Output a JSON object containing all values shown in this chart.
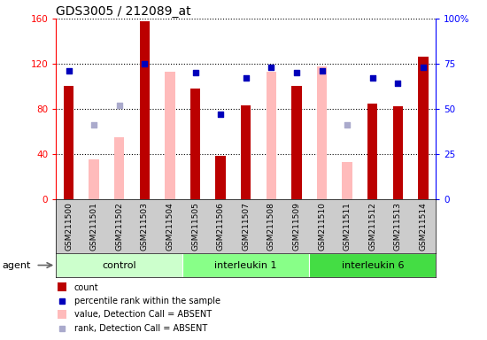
{
  "title": "GDS3005 / 212089_at",
  "samples": [
    "GSM211500",
    "GSM211501",
    "GSM211502",
    "GSM211503",
    "GSM211504",
    "GSM211505",
    "GSM211506",
    "GSM211507",
    "GSM211508",
    "GSM211509",
    "GSM211510",
    "GSM211511",
    "GSM211512",
    "GSM211513",
    "GSM211514"
  ],
  "groups": [
    {
      "label": "control",
      "start": 0,
      "end": 4
    },
    {
      "label": "interleukin 1",
      "start": 5,
      "end": 9
    },
    {
      "label": "interleukin 6",
      "start": 10,
      "end": 14
    }
  ],
  "group_colors": [
    "#ccffcc",
    "#88ff88",
    "#44dd44"
  ],
  "agent_label": "agent",
  "red_bars": [
    100,
    null,
    null,
    158,
    null,
    98,
    38,
    83,
    null,
    100,
    null,
    null,
    85,
    82,
    126
  ],
  "pink_bars": [
    null,
    35,
    55,
    null,
    113,
    null,
    null,
    null,
    113,
    null,
    118,
    33,
    null,
    null,
    null
  ],
  "blue_squares_pct": [
    71,
    null,
    null,
    75,
    null,
    70,
    47,
    67,
    73,
    70,
    71,
    null,
    67,
    64,
    73
  ],
  "lavender_squares_pct": [
    null,
    41,
    52,
    null,
    null,
    null,
    null,
    null,
    null,
    null,
    null,
    41,
    null,
    null,
    null
  ],
  "ylim_left": [
    0,
    160
  ],
  "ylim_right": [
    0,
    100
  ],
  "yticks_left": [
    0,
    40,
    80,
    120,
    160
  ],
  "yticks_right": [
    0,
    25,
    50,
    75,
    100
  ],
  "yticklabels_right": [
    "0",
    "25",
    "50",
    "75",
    "100%"
  ],
  "red_bar_color": "#bb0000",
  "pink_bar_color": "#ffbbbb",
  "blue_sq_color": "#0000bb",
  "lavender_sq_color": "#aaaacc",
  "bar_width": 0.4,
  "title_fontsize": 10,
  "axis_fontsize": 7.5,
  "label_fontsize": 6.5,
  "legend_fontsize": 7,
  "group_fontsize": 8
}
